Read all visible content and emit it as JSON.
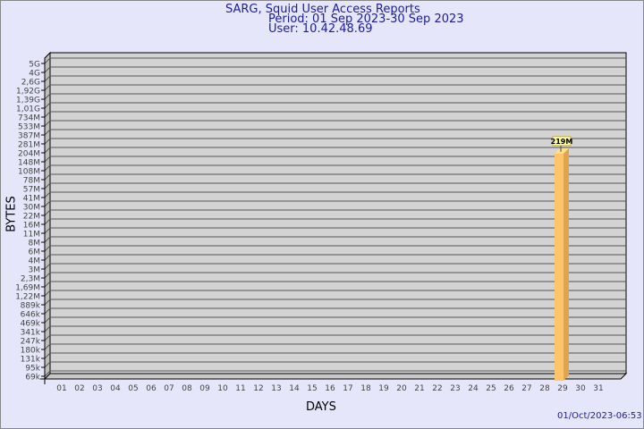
{
  "header": {
    "title": "SARG, Squid User Access Reports",
    "period": "Period: 01 Sep 2023-30 Sep 2023",
    "user": "User: 10.42.48.69"
  },
  "footer": {
    "generated": "01/Oct/2023-06:53"
  },
  "chart_data": {
    "type": "bar",
    "title": "SARG, Squid User Access Reports",
    "xlabel": "DAYS",
    "ylabel": "BYTES",
    "y_scale": "log",
    "grid": true,
    "y_ticks": [
      "5G",
      "4G",
      "2,6G",
      "1,92G",
      "1,39G",
      "1,01G",
      "734M",
      "533M",
      "387M",
      "281M",
      "204M",
      "148M",
      "108M",
      "78M",
      "57M",
      "41M",
      "30M",
      "22M",
      "16M",
      "11M",
      "8M",
      "6M",
      "4M",
      "3M",
      "2,3M",
      "1,69M",
      "1,22M",
      "889k",
      "646k",
      "469k",
      "341k",
      "247k",
      "180k",
      "131k",
      "95k",
      "69k"
    ],
    "categories": [
      "01",
      "02",
      "03",
      "04",
      "05",
      "06",
      "07",
      "08",
      "09",
      "10",
      "11",
      "12",
      "13",
      "14",
      "15",
      "16",
      "17",
      "18",
      "19",
      "20",
      "21",
      "22",
      "23",
      "24",
      "25",
      "26",
      "27",
      "28",
      "29",
      "30",
      "31"
    ],
    "bars": [
      {
        "day": "29",
        "value_bytes": 219000000,
        "label": "219M"
      }
    ],
    "colors": {
      "bar_front": "#fec46a",
      "bar_side": "#e0a44c",
      "bar_top": "#ffe08a",
      "plot_bg": "#d3d3d3",
      "page_bg": "#e6e6fa"
    }
  }
}
